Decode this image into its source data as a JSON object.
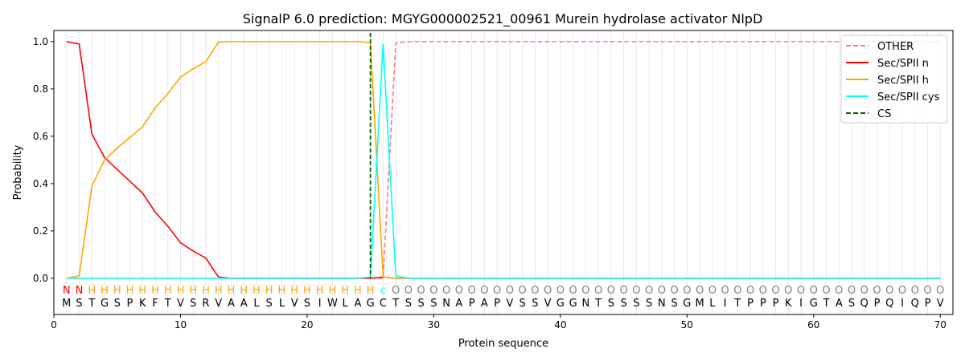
{
  "chart_data": {
    "type": "line",
    "title": "SignalP 6.0 prediction: MGYG000002521_00961 Murein hydrolase activator NlpD",
    "xlabel": "Protein sequence",
    "ylabel": "Probability",
    "xlim": [
      0,
      71
    ],
    "ylim": [
      -0.153,
      1.047
    ],
    "xticks": [
      0,
      10,
      20,
      30,
      40,
      50,
      60,
      70
    ],
    "yticks": [
      "0.0",
      "0.2",
      "0.4",
      "0.6",
      "0.8",
      "1.0"
    ],
    "sequence": "MSTGSPKFTVSRVAALSLVSIWLAGCTSSSNAPAPVSSVGGNTSSSSNSGMLITPPPKIGTASQPQIQPV",
    "labels": "NNHHHHHHHHHHHHHHHHHHHHHHHcOOOOOOOOOOOOOOOOOOOOOOOOOOOOOOOOOOOOOOOOOOOO",
    "label_colors": {
      "N": "#ff0000",
      "H": "#ffa500",
      "c": "#00ffff",
      "O": "#808080"
    },
    "cs_position": 25,
    "legend_position": "top-right",
    "series": [
      {
        "name": "OTHER",
        "color": "#f08080",
        "dash": true,
        "values": [
          0,
          0,
          0,
          0,
          0,
          0,
          0,
          0,
          0,
          0,
          0,
          0,
          0,
          0,
          0,
          0,
          0,
          0,
          0,
          0,
          0,
          0,
          0,
          0,
          0,
          0.0,
          0.995,
          1,
          1,
          1,
          1,
          1,
          1,
          1,
          1,
          1,
          1,
          1,
          1,
          1,
          1,
          1,
          1,
          1,
          1,
          1,
          1,
          1,
          1,
          1,
          1,
          1,
          1,
          1,
          1,
          1,
          1,
          1,
          1,
          1,
          1,
          1,
          1,
          1,
          1,
          1,
          1,
          1,
          1,
          1
        ]
      },
      {
        "name": "Sec/SPII n",
        "color": "#ff0000",
        "dash": false,
        "values": [
          1.0,
          0.99,
          0.61,
          0.51,
          0.46,
          0.41,
          0.36,
          0.28,
          0.22,
          0.15,
          0.115,
          0.085,
          0.005,
          0,
          0,
          0,
          0,
          0,
          0,
          0,
          0,
          0,
          0,
          0,
          0,
          0.005,
          0,
          0,
          0,
          0,
          0,
          0,
          0,
          0,
          0,
          0,
          0,
          0,
          0,
          0,
          0,
          0,
          0,
          0,
          0,
          0,
          0,
          0,
          0,
          0,
          0,
          0,
          0,
          0,
          0,
          0,
          0,
          0,
          0,
          0,
          0,
          0,
          0,
          0,
          0,
          0,
          0,
          0,
          0,
          0
        ]
      },
      {
        "name": "Sec/SPII h",
        "color": "#ffa500",
        "dash": false,
        "values": [
          0,
          0.01,
          0.39,
          0.5,
          0.55,
          0.595,
          0.64,
          0.72,
          0.78,
          0.85,
          0.885,
          0.915,
          0.998,
          1,
          1,
          1,
          1,
          1,
          1,
          1,
          1,
          1,
          1,
          1,
          0.995,
          0.005,
          0,
          0,
          0,
          0,
          0,
          0,
          0,
          0,
          0,
          0,
          0,
          0,
          0,
          0,
          0,
          0,
          0,
          0,
          0,
          0,
          0,
          0,
          0,
          0,
          0,
          0,
          0,
          0,
          0,
          0,
          0,
          0,
          0,
          0,
          0,
          0,
          0,
          0,
          0,
          0,
          0,
          0,
          0,
          0
        ]
      },
      {
        "name": "Sec/SPII cys",
        "color": "#00ffff",
        "dash": false,
        "values": [
          0,
          0,
          0,
          0,
          0,
          0,
          0,
          0,
          0,
          0,
          0,
          0,
          0,
          0,
          0,
          0,
          0,
          0,
          0,
          0,
          0,
          0,
          0,
          0,
          0.005,
          0.99,
          0.01,
          0,
          0,
          0,
          0,
          0,
          0,
          0,
          0,
          0,
          0,
          0,
          0,
          0,
          0,
          0,
          0,
          0,
          0,
          0,
          0,
          0,
          0,
          0,
          0,
          0,
          0,
          0,
          0,
          0,
          0,
          0,
          0,
          0,
          0,
          0,
          0,
          0,
          0,
          0,
          0,
          0,
          0,
          0
        ]
      },
      {
        "name": "CS",
        "color": "#006400",
        "dash": true
      }
    ]
  }
}
